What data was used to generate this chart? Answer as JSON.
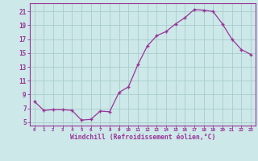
{
  "x": [
    0,
    1,
    2,
    3,
    4,
    5,
    6,
    7,
    8,
    9,
    10,
    11,
    12,
    13,
    14,
    15,
    16,
    17,
    18,
    19,
    20,
    21,
    22,
    23
  ],
  "y": [
    8.0,
    6.7,
    6.8,
    6.8,
    6.7,
    5.3,
    5.4,
    6.6,
    6.5,
    9.3,
    10.1,
    13.3,
    16.0,
    17.5,
    18.1,
    19.2,
    20.1,
    21.3,
    21.2,
    21.0,
    19.2,
    17.0,
    15.5,
    14.8
  ],
  "line_color": "#993399",
  "marker": "+",
  "marker_color": "#993399",
  "bg_color": "#cce8e8",
  "grid_color": "#aacccc",
  "xlabel": "Windchill (Refroidissement éolien,°C)",
  "xlabel_color": "#993399",
  "tick_color": "#993399",
  "ylim": [
    4.5,
    22.2
  ],
  "xlim": [
    -0.5,
    23.5
  ],
  "yticks": [
    5,
    7,
    9,
    11,
    13,
    15,
    17,
    19,
    21
  ],
  "xticks": [
    0,
    1,
    2,
    3,
    4,
    5,
    6,
    7,
    8,
    9,
    10,
    11,
    12,
    13,
    14,
    15,
    16,
    17,
    18,
    19,
    20,
    21,
    22,
    23
  ],
  "spine_color": "#993399"
}
